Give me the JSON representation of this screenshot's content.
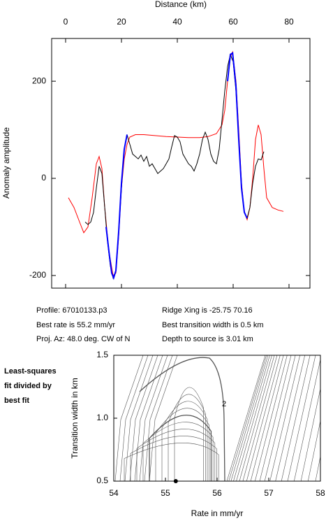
{
  "chart_data": [
    {
      "type": "line",
      "title": "Distance (km)",
      "ylabel": "Anomaly amplitude",
      "xlim": [
        -5,
        87.5
      ],
      "ylim": [
        -226,
        288
      ],
      "xticks": [
        0,
        20,
        40,
        60,
        80
      ],
      "yticks": [
        -200,
        0,
        200
      ],
      "series": [
        {
          "color": "#ff0000",
          "x": [
            1,
            3,
            5,
            6.5,
            8,
            9.5,
            11,
            12,
            13,
            14,
            15.5,
            17,
            18,
            19,
            20,
            21,
            22,
            23,
            25,
            28,
            32,
            36,
            40,
            44,
            48,
            51,
            54,
            56,
            57,
            58,
            59,
            59.8,
            61,
            62,
            63,
            64,
            65,
            66,
            67,
            68,
            69,
            70,
            71,
            72,
            74,
            76,
            78
          ],
          "values": [
            -40,
            -60,
            -90,
            -112,
            -100,
            -40,
            30,
            45,
            20,
            -60,
            -150,
            -200,
            -195,
            -120,
            -20,
            40,
            70,
            85,
            90,
            90,
            88,
            86,
            85,
            84,
            84,
            86,
            92,
            110,
            140,
            200,
            250,
            260,
            200,
            100,
            -10,
            -70,
            -85,
            -60,
            0,
            80,
            110,
            90,
            20,
            -40,
            -60,
            -65,
            -68
          ]
        },
        {
          "color": "#000000",
          "x": [
            7,
            8,
            9,
            10,
            11,
            12,
            13,
            14,
            15,
            16,
            17,
            18,
            19,
            20,
            21,
            22,
            23,
            24,
            25,
            26,
            27,
            28,
            29,
            30,
            31,
            32,
            33,
            34,
            35,
            36,
            37,
            38,
            39,
            40,
            41,
            42,
            43,
            44,
            45,
            46,
            47,
            48,
            49,
            50,
            51,
            52,
            53,
            54,
            55,
            56,
            57,
            58,
            59,
            60,
            61,
            62,
            63,
            64,
            65,
            66,
            67,
            68,
            69,
            70,
            71
          ],
          "values": [
            -90,
            -95,
            -90,
            -70,
            -20,
            25,
            10,
            -60,
            -130,
            -180,
            -205,
            -190,
            -110,
            -20,
            60,
            90,
            70,
            50,
            45,
            40,
            48,
            35,
            45,
            25,
            30,
            20,
            10,
            15,
            20,
            30,
            40,
            65,
            88,
            85,
            75,
            50,
            40,
            30,
            25,
            15,
            30,
            50,
            80,
            95,
            80,
            50,
            35,
            30,
            60,
            120,
            180,
            230,
            255,
            240,
            180,
            80,
            -20,
            -70,
            -82,
            -60,
            -10,
            25,
            40,
            38,
            55
          ]
        },
        {
          "color": "#0000ff",
          "x": [
            14.5,
            15.5,
            16.5,
            17.2,
            18,
            19,
            20,
            21,
            22,
            null,
            58,
            59,
            59.8,
            61,
            62,
            63,
            64,
            65
          ],
          "values": [
            -100,
            -150,
            -195,
            -205,
            -190,
            -110,
            -10,
            60,
            90,
            null,
            200,
            255,
            258,
            190,
            80,
            -20,
            -70,
            -82
          ]
        }
      ]
    },
    {
      "type": "contour",
      "xlabel": "Rate in mm/yr",
      "ylabel": "Transition width in km",
      "xlim": [
        54,
        58
      ],
      "ylim": [
        0.5,
        1.5
      ],
      "xticks": [
        54,
        55,
        56,
        57,
        58
      ],
      "yticks": [
        {
          "value": 0.5,
          "label": "0.5"
        },
        {
          "value": 1,
          "label": "1.0"
        },
        {
          "value": 1.5,
          "label": "1.5"
        }
      ],
      "contour_label": "2",
      "best_fit": {
        "rate": 55.2,
        "width": 0.5
      },
      "side_note": [
        "Least-squares",
        "fit divided by",
        "best fit"
      ]
    }
  ],
  "info": [
    "Profile: 67010133.p3",
    "Ridge Xing is -25.75 70.16",
    "Best rate is 55.2 mm/yr",
    "Best transition width is 0.5 km",
    "Proj. Az: 48.0 deg. CW of N",
    "Depth to source is   3.01 km"
  ]
}
